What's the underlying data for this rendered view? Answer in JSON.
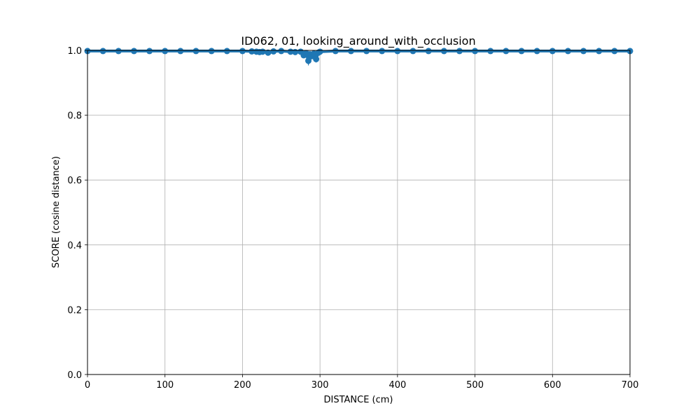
{
  "chart_data": {
    "type": "scatter",
    "title": "ID062, 01, looking_around_with_occlusion",
    "xlabel": "DISTANCE (cm)",
    "ylabel": "SCORE (cosine distance)",
    "xlim": [
      0,
      700
    ],
    "ylim": [
      0.0,
      1.0
    ],
    "xticks": [
      "0",
      "100",
      "200",
      "300",
      "400",
      "500",
      "600",
      "700"
    ],
    "yticks": [
      "0.0",
      "0.2",
      "0.4",
      "0.6",
      "0.8",
      "1.0"
    ],
    "grid": true,
    "legend": "none",
    "color": "#1f77b4",
    "series": [
      {
        "x": [
          0,
          20,
          40,
          60,
          80,
          100,
          120,
          140,
          160,
          180,
          200,
          212,
          218,
          222,
          226,
          233,
          240,
          250,
          262,
          268,
          275,
          279,
          282,
          285,
          287,
          289,
          292,
          295,
          298,
          300,
          320,
          340,
          360,
          380,
          400,
          420,
          440,
          460,
          480,
          500,
          520,
          540,
          560,
          580,
          600,
          620,
          640,
          660,
          680,
          700
        ],
        "y": [
          0.998,
          0.998,
          0.998,
          0.998,
          0.998,
          0.998,
          0.998,
          0.998,
          0.998,
          0.998,
          0.998,
          0.997,
          0.996,
          0.995,
          0.996,
          0.993,
          0.997,
          0.998,
          0.996,
          0.995,
          0.996,
          0.985,
          0.992,
          0.968,
          0.988,
          0.982,
          0.99,
          0.973,
          0.993,
          0.996,
          0.998,
          0.998,
          0.998,
          0.998,
          0.998,
          0.998,
          0.998,
          0.998,
          0.998,
          0.998,
          0.998,
          0.998,
          0.998,
          0.998,
          0.998,
          0.998,
          0.998,
          0.998,
          0.998,
          0.998
        ]
      }
    ]
  }
}
